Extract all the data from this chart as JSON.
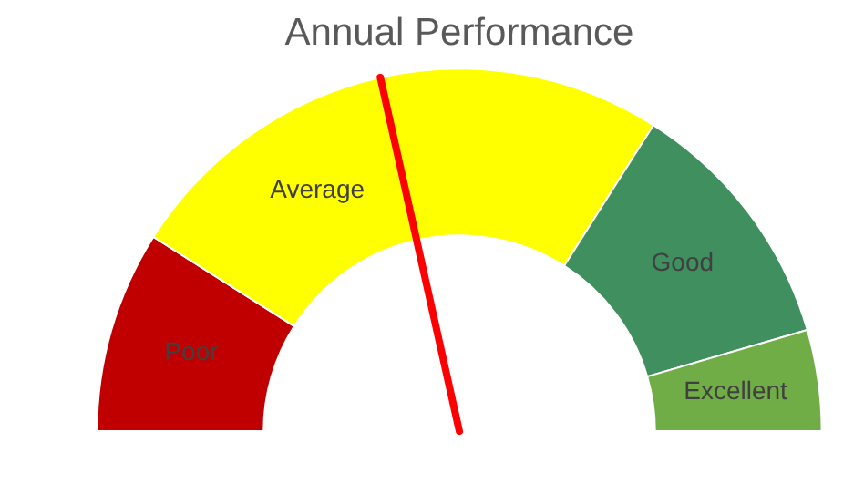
{
  "chart_data": {
    "type": "donut",
    "title": "Annual Performance",
    "categories": [
      "Poor",
      "Average",
      "Good",
      "Excellent"
    ],
    "values": [
      18,
      50,
      23,
      9
    ],
    "colors": [
      "#c00000",
      "#ffff00",
      "#3f8f5f",
      "#70ad47"
    ],
    "needle": "Average",
    "legend": false
  }
}
